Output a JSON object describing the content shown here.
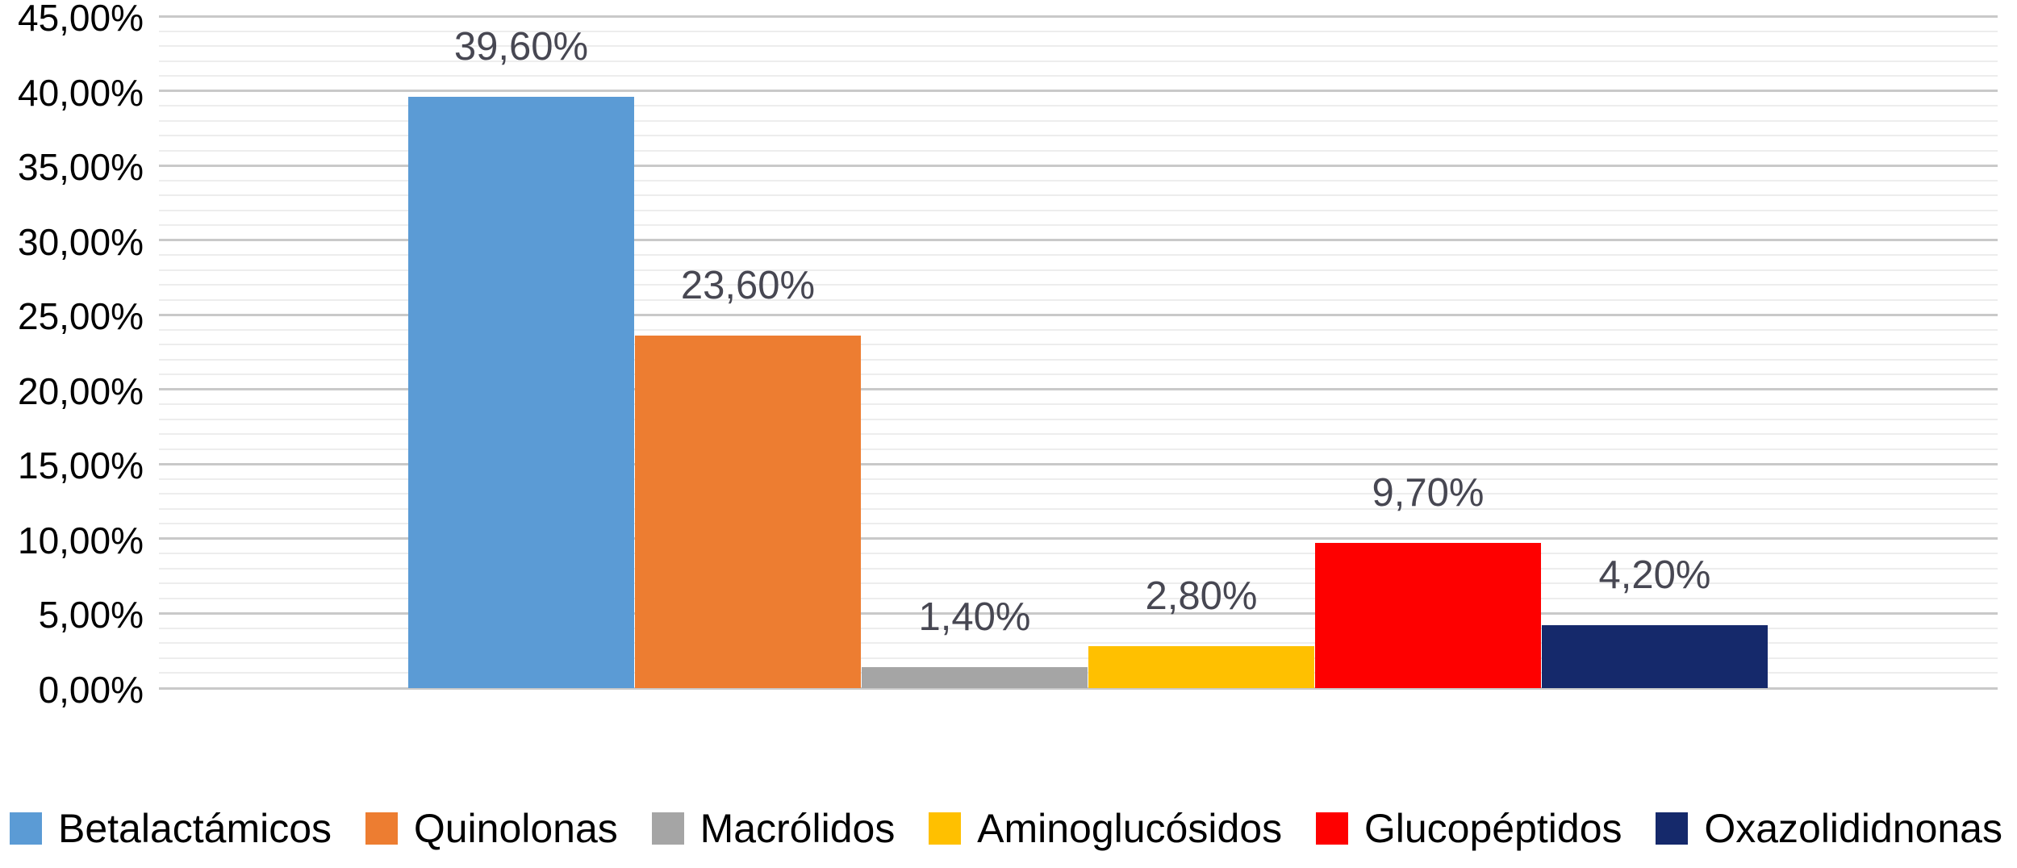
{
  "chart_data": {
    "type": "bar",
    "title": "",
    "categories": [
      ""
    ],
    "series": [
      {
        "name": "Betalactámicos",
        "value": 39.6,
        "data_label": "39,60%",
        "color": "#5B9BD5"
      },
      {
        "name": "Quinolonas",
        "value": 23.6,
        "data_label": "23,60%",
        "color": "#ED7D31"
      },
      {
        "name": "Macrólidos",
        "value": 1.4,
        "data_label": "1,40%",
        "color": "#A5A5A5"
      },
      {
        "name": "Aminoglucósidos",
        "value": 2.8,
        "data_label": "2,80%",
        "color": "#FFC000"
      },
      {
        "name": "Glucopéptidos",
        "value": 9.7,
        "data_label": "9,70%",
        "color": "#FE0000"
      },
      {
        "name": "Oxazolididnonas",
        "value": 4.2,
        "data_label": "4,20%",
        "color": "#15296B"
      }
    ],
    "y_axis": {
      "min": 0,
      "max": 45,
      "major_step": 5,
      "minor_step": 1,
      "tick_labels": [
        "45,00%",
        "40,00%",
        "35,00%",
        "30,00%",
        "25,00%",
        "20,00%",
        "15,00%",
        "10,00%",
        "5,00%",
        "0,00%"
      ]
    },
    "legend": {
      "position": "bottom",
      "entries": [
        "Betalactámicos",
        "Quinolonas",
        "Macrólidos",
        "Aminoglucósidos",
        "Glucopéptidos",
        "Oxazolididnonas"
      ]
    },
    "grid": {
      "major": true,
      "minor": true,
      "horizontal": true
    }
  },
  "colors": {
    "background": "#FFFFFF",
    "axis_text": "#000000",
    "data_label_text": "#474752",
    "gridline_major": "#C9C9C9",
    "gridline_minor": "#EDEDED"
  }
}
